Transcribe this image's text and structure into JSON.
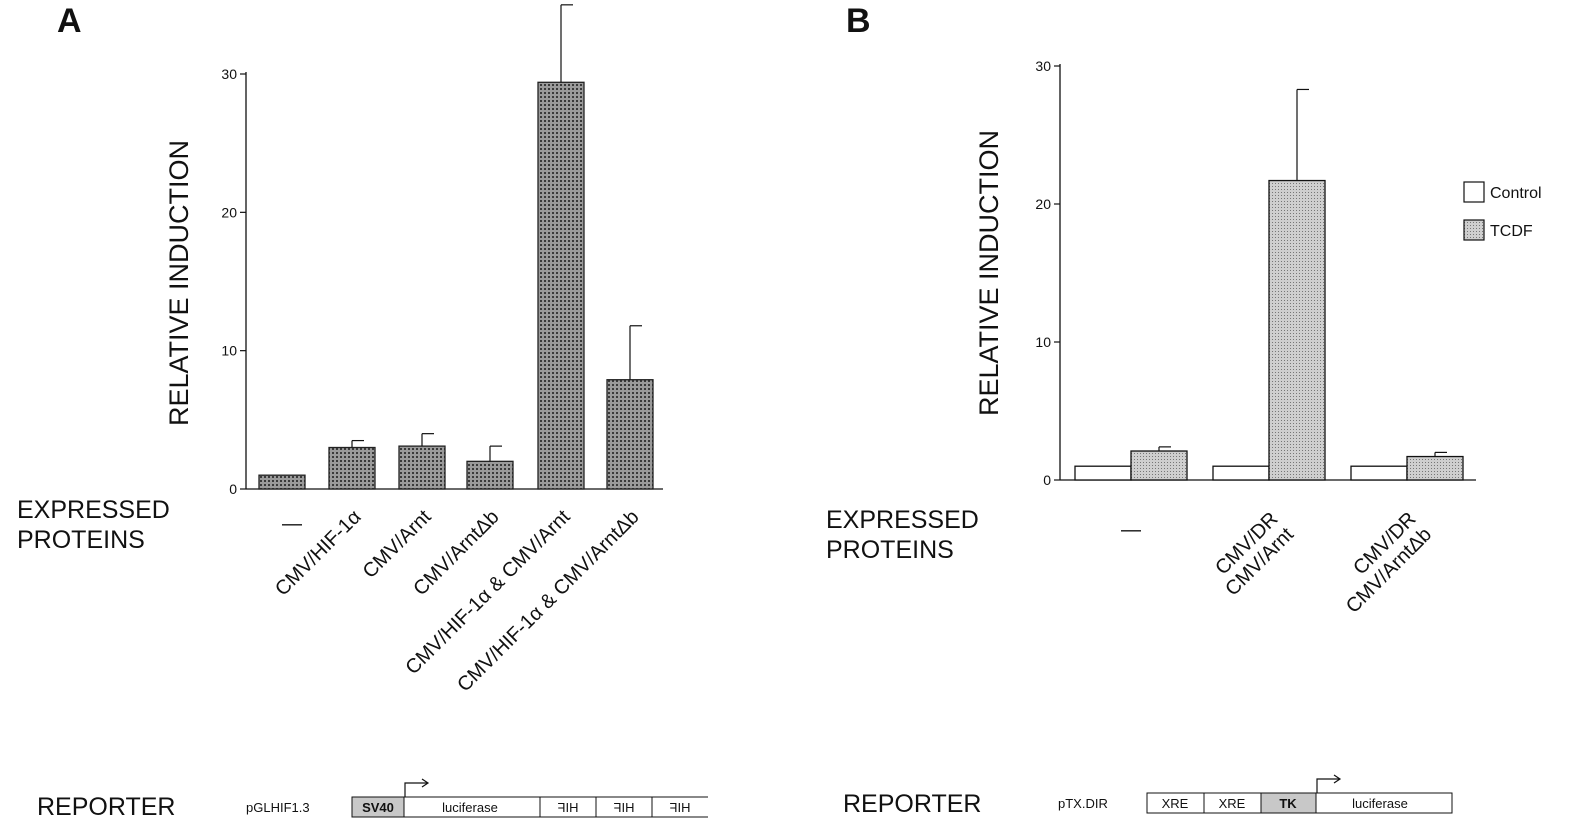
{
  "colors": {
    "axis": "#111111",
    "bar_dark": "#7a7a7a",
    "bar_tcdf": "#b4b4b4",
    "control": "#ffffff",
    "sv40_box": "#c8c8c8",
    "tk_box": "#c8c8c8"
  },
  "chart_data": [
    {
      "type": "bar",
      "panel": "A",
      "ylabel": "RELATIVE INDUCTION",
      "xlabel": "EXPRESSED PROTEINS",
      "ylim": [
        0,
        30
      ],
      "yticks": [
        "0",
        "10",
        "20",
        "30"
      ],
      "grid": false,
      "categories": [
        "—",
        "CMV/HIF-1α",
        "CMV/Arnt",
        "CMV/ArntΔb",
        "CMV/HIF-1α & CMV/Arnt",
        "CMV/HIF-1α & CMV/ArntΔb"
      ],
      "values": [
        1,
        3,
        3.1,
        2,
        29.4,
        7.9
      ],
      "errors": [
        0,
        0.5,
        0.9,
        1.1,
        5.6,
        3.9
      ],
      "reporter": {
        "label": "REPORTER",
        "construct": "pGLHIF1.3",
        "elements": [
          "SV40",
          "luciferase",
          "HIF",
          "HIF",
          "HIF"
        ]
      }
    },
    {
      "type": "bar",
      "panel": "B",
      "ylabel": "RELATIVE INDUCTION",
      "xlabel": "EXPRESSED PROTEINS",
      "ylim": [
        0,
        30
      ],
      "yticks": [
        "0",
        "10",
        "20",
        "30"
      ],
      "grid": false,
      "legend_position": "right",
      "categories": [
        [
          "—"
        ],
        [
          "CMV/DR",
          "CMV/Arnt"
        ],
        [
          "CMV/DR",
          "CMV/ArntΔb"
        ]
      ],
      "series": [
        {
          "name": "Control",
          "values": [
            1,
            1,
            1
          ],
          "errors": [
            0,
            0,
            0
          ]
        },
        {
          "name": "TCDF",
          "values": [
            2.1,
            21.7,
            1.7
          ],
          "errors": [
            0.3,
            6.6,
            0.3
          ]
        }
      ],
      "reporter": {
        "label": "REPORTER",
        "construct": "pTX.DIR",
        "elements": [
          "XRE",
          "XRE",
          "TK",
          "luciferase"
        ]
      }
    }
  ]
}
